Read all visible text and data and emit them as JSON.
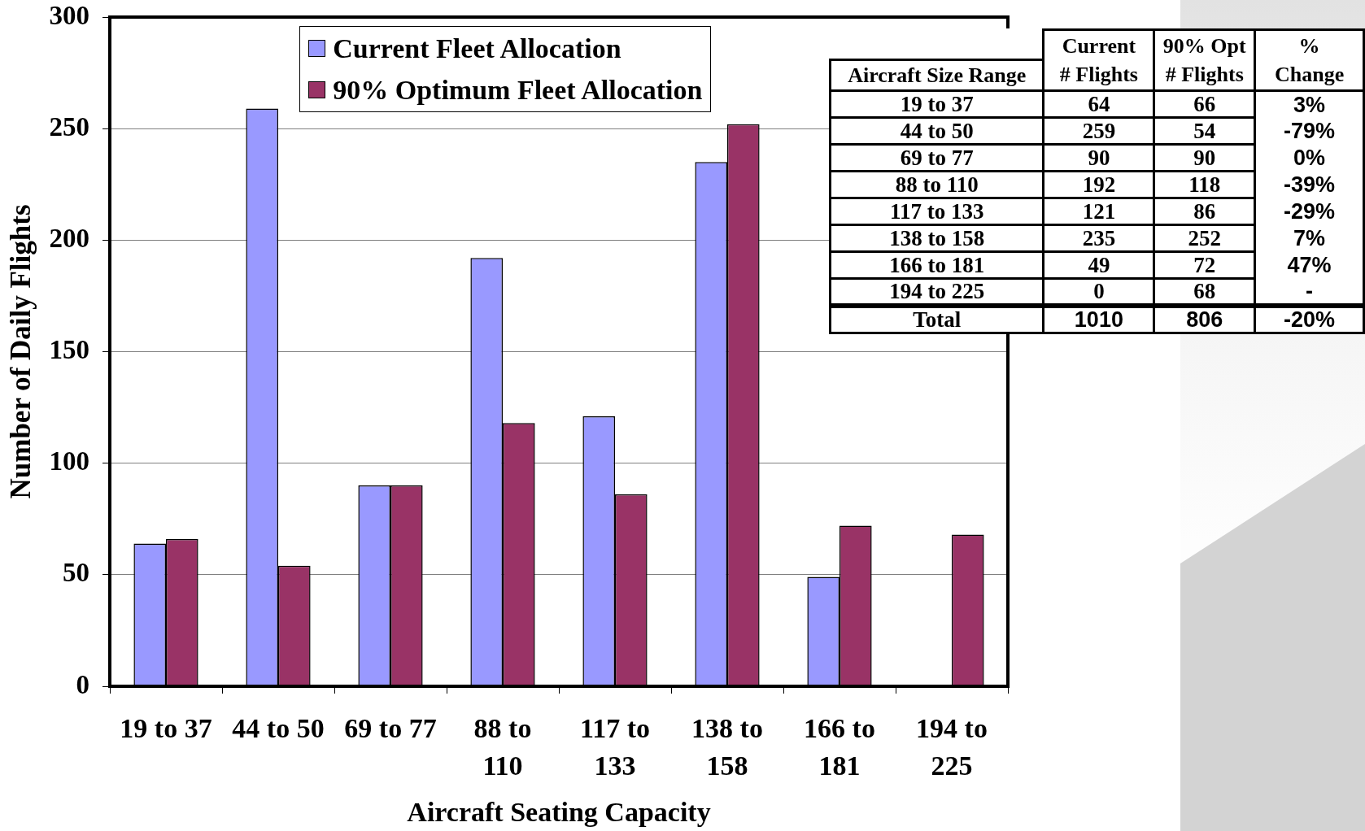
{
  "chart_data": {
    "type": "bar",
    "xlabel": "Aircraft Seating Capacity",
    "ylabel": "Number of Daily Flights",
    "categories": [
      "19 to 37",
      "44 to 50",
      "69 to 77",
      "88 to 110",
      "117 to 133",
      "138 to 158",
      "166 to 181",
      "194 to 225"
    ],
    "series": [
      {
        "name": "Current Fleet Allocation",
        "color": "#9999ff",
        "values": [
          64,
          259,
          90,
          192,
          121,
          235,
          49,
          0
        ]
      },
      {
        "name": "90% Optimum Fleet Allocation",
        "color": "#993366",
        "values": [
          66,
          54,
          90,
          118,
          86,
          252,
          72,
          68
        ]
      }
    ],
    "ylim": [
      0,
      300
    ],
    "yticks": [
      0,
      50,
      100,
      150,
      200,
      250,
      300
    ],
    "grid": "y",
    "legend": "top",
    "annotations": [
      "Aircraft Size Range",
      "Current\n# Flights",
      "90% Opt\n# Flights",
      "%\nChange",
      "64",
      "66",
      "3%",
      "259",
      "54",
      "-79%",
      "90",
      "90",
      "0%",
      "192",
      "118",
      "-39%",
      "121",
      "86",
      "-29%",
      "235",
      "252",
      "7%",
      "49",
      "72",
      "47%",
      "0",
      "68",
      "-",
      "Total",
      "1010",
      "806",
      "-20%"
    ]
  }
}
